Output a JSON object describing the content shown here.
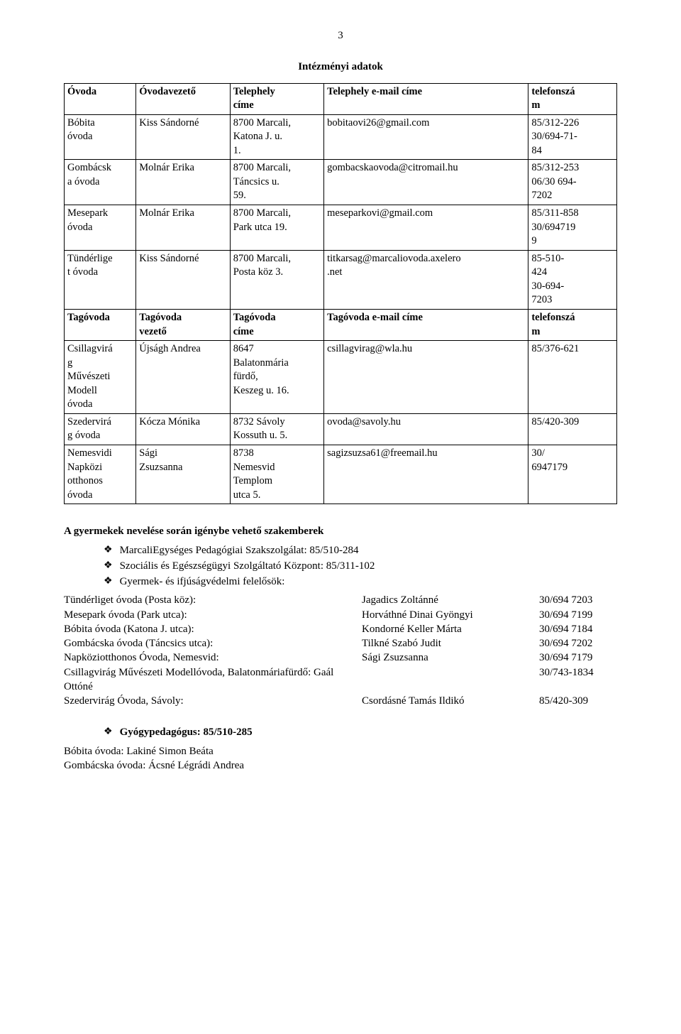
{
  "page_number": "3",
  "doc_title": "Intézményi adatok",
  "table": {
    "header1": {
      "ovoda": "Óvoda",
      "vez": "Óvodavezető",
      "tel": "Telephely\ncíme",
      "email": "Telephely e-mail címe",
      "phone": "telefonszá\nm"
    },
    "rows1": [
      {
        "ovoda": "Bóbita\nóvoda",
        "vez": "Kiss Sándorné",
        "tel": "8700 Marcali,\nKatona J. u.\n1.",
        "email": "bobitaovi26@gmail.com",
        "phone": "85/312-226\n30/694-71-\n84"
      },
      {
        "ovoda": "Gombácsk\na óvoda",
        "vez": "Molnár Erika",
        "tel": "8700 Marcali,\nTáncsics u.\n59.",
        "email": "gombacskaovoda@citromail.hu",
        "phone": "85/312-253\n06/30 694-\n7202"
      },
      {
        "ovoda": "Mesepark\nóvoda",
        "vez": "Molnár Erika",
        "tel": "8700 Marcali,\nPark utca 19.",
        "email": "meseparkovi@gmail.com",
        "phone": "85/311-858\n30/694719\n9"
      },
      {
        "ovoda": "Tündérlige\nt óvoda",
        "vez": "Kiss Sándorné",
        "tel": "8700 Marcali,\nPosta köz 3.",
        "email": "titkarsag@marcaliovoda.axelero\n.net",
        "phone": "85-510-\n424\n30-694-\n7203"
      }
    ],
    "header2": {
      "ovoda": "Tagóvoda",
      "vez": "Tagóvoda\nvezető",
      "tel": "Tagóvoda\ncíme",
      "email": "Tagóvoda e-mail címe",
      "phone": "telefonszá\nm"
    },
    "rows2": [
      {
        "ovoda": "Csillagvirá\ng\nMűvészeti\nModell\nóvoda",
        "vez": "Újságh Andrea",
        "tel": "8647\nBalatonmária\nfürdő,\nKeszeg u. 16.",
        "email": "csillagvirag@wla.hu",
        "phone": "85/376-621"
      },
      {
        "ovoda": "Szedervirá\ng óvoda",
        "vez": "Kócza Mónika",
        "tel": "8732 Sávoly\nKossuth u. 5.",
        "email": "ovoda@savoly.hu",
        "phone": "85/420-309"
      },
      {
        "ovoda": "Nemesvidi\nNapközi\notthonos\nóvoda",
        "vez": "Sági\nZsuzsanna",
        "tel": "8738\nNemesvid\nTemplom\nutca 5.",
        "email": "sagizsuzsa61@freemail.hu",
        "phone": "30/\n6947179"
      }
    ]
  },
  "spec_heading": "A gyermekek nevelése során igénybe vehető szakemberek",
  "spec_items": [
    "MarcaliEgységes Pedagógiai Szakszolgálat: 85/510-284",
    "Szociális és Egészségügyi Szolgáltató Központ: 85/311-102",
    "Gyermek- és ifjúságvédelmi felelősök:"
  ],
  "contacts": [
    {
      "l": "Tündérliget óvoda (Posta köz):",
      "m": "Jagadics Zoltánné",
      "r": "30/694 7203"
    },
    {
      "l": "Mesepark óvoda (Park utca):",
      "m": "Horváthné Dinai Gyöngyi",
      "r": "30/694 7199"
    },
    {
      "l": "Bóbita óvoda (Katona J. utca):",
      "m": "Kondorné Keller Márta",
      "r": "30/694 7184"
    },
    {
      "l": "Gombácska óvoda (Táncsics utca):",
      "m": "Tilkné Szabó Judit",
      "r": "30/694 7202"
    },
    {
      "l": "Napköziotthonos Óvoda, Nemesvid:",
      "m": "Sági Zsuzsanna",
      "r": "30/694 7179"
    },
    {
      "l": "Csillagvirág Művészeti Modellóvoda, Balatonmáriafürdő: Gaál Ottóné",
      "m": "",
      "r": "30/743-1834"
    },
    {
      "l": "Szedervirág Óvoda, Sávoly:",
      "m": "Csordásné Tamás Ildikó",
      "r": "85/420-309"
    }
  ],
  "gyogy_heading": "Gyógypedagógus: 85/510-285",
  "gyogy_lines": [
    "Bóbita óvoda: Lakiné Simon Beáta",
    "Gombácska óvoda: Ácsné Légrádi Andrea"
  ],
  "icon": "❖"
}
